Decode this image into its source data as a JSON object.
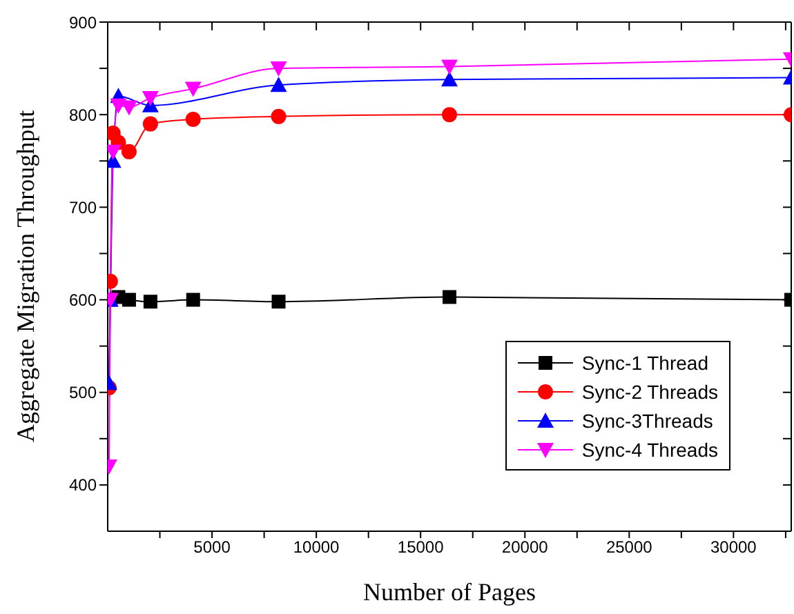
{
  "chart_data": {
    "type": "line",
    "xlabel": "Number of Pages",
    "ylabel": "Aggregate Migration Throughput",
    "x": [
      64,
      128,
      256,
      512,
      1024,
      2048,
      4096,
      8192,
      16384,
      32768
    ],
    "series": [
      {
        "name": "Sync-1 Thread",
        "color": "#000000",
        "marker": "square",
        "values": [
          null,
          600,
          null,
          603,
          600,
          598,
          600,
          598,
          603,
          600
        ]
      },
      {
        "name": "Sync-2 Threads",
        "color": "#ff0000",
        "marker": "circle",
        "values": [
          505,
          620,
          780,
          770,
          760,
          790,
          795,
          798,
          800,
          800
        ]
      },
      {
        "name": "Sync-3Threads",
        "color": "#0000ff",
        "marker": "triangle",
        "values": [
          510,
          600,
          750,
          820,
          null,
          810,
          null,
          832,
          838,
          840
        ]
      },
      {
        "name": "Sync-4 Threads",
        "color": "#ff00ff",
        "marker": "triangle-down",
        "values": [
          420,
          600,
          760,
          810,
          808,
          818,
          828,
          850,
          852,
          860
        ]
      }
    ],
    "xlim": [
      0,
      32768
    ],
    "xticks": [
      {
        "value": 2500,
        "label": null
      },
      5000,
      {
        "value": 7500,
        "label": null
      },
      10000,
      {
        "value": 12500,
        "label": null
      },
      15000,
      {
        "value": 17500,
        "label": null
      },
      20000,
      {
        "value": 22500,
        "label": null
      },
      25000,
      {
        "value": 27500,
        "label": null
      },
      30000,
      {
        "value": 32500,
        "label": null
      }
    ],
    "ylim": [
      350,
      900
    ],
    "yticks": [
      400,
      {
        "value": 450,
        "label": null
      },
      500,
      {
        "value": 550,
        "label": null
      },
      600,
      {
        "value": 650,
        "label": null
      },
      700,
      {
        "value": 750,
        "label": null
      },
      800,
      {
        "value": 850,
        "label": null
      },
      900
    ],
    "legend": "bottom right",
    "grid": false,
    "line_style": "solid"
  }
}
